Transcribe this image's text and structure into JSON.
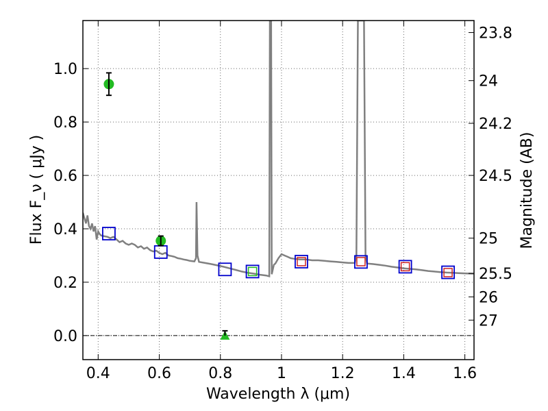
{
  "chart_data": {
    "type": "scatter",
    "xlabel": "Wavelength  λ (μm)",
    "ylabel_left": "Flux  F_ν  ( μJy )",
    "ylabel_right": "Magnitude (AB)",
    "xlim": [
      0.35,
      1.63
    ],
    "ylim": [
      -0.09,
      1.18
    ],
    "x_ticks": [
      {
        "v": 0.4,
        "label": "0.4"
      },
      {
        "v": 0.6,
        "label": "0.6"
      },
      {
        "v": 0.8,
        "label": "0.8"
      },
      {
        "v": 1.0,
        "label": "1"
      },
      {
        "v": 1.2,
        "label": "1.2"
      },
      {
        "v": 1.4,
        "label": "1.4"
      },
      {
        "v": 1.6,
        "label": "1.6"
      }
    ],
    "y_ticks": [
      {
        "v": 0.0,
        "label": "0.0"
      },
      {
        "v": 0.2,
        "label": "0.2"
      },
      {
        "v": 0.4,
        "label": "0.4"
      },
      {
        "v": 0.6,
        "label": "0.6"
      },
      {
        "v": 0.8,
        "label": "0.8"
      },
      {
        "v": 1.0,
        "label": "1.0"
      }
    ],
    "mag_ticks": [
      {
        "v": 1.135,
        "label": "23.8"
      },
      {
        "v": 0.955,
        "label": "24"
      },
      {
        "v": 0.795,
        "label": "24.2"
      },
      {
        "v": 0.6,
        "label": "24.5"
      },
      {
        "v": 0.365,
        "label": "25"
      },
      {
        "v": 0.233,
        "label": "25.5"
      },
      {
        "v": 0.145,
        "label": "26"
      },
      {
        "v": 0.058,
        "label": "27"
      }
    ],
    "colors": {
      "model": "#808080",
      "model_box": "#0000cc",
      "observed": "#22bb22",
      "nir_box": "#cc2222",
      "grid": "#666666"
    },
    "model_spectrum": [
      [
        0.35,
        0.46
      ],
      [
        0.355,
        0.44
      ],
      [
        0.36,
        0.42
      ],
      [
        0.365,
        0.45
      ],
      [
        0.37,
        0.41
      ],
      [
        0.375,
        0.4
      ],
      [
        0.38,
        0.42
      ],
      [
        0.385,
        0.39
      ],
      [
        0.39,
        0.41
      ],
      [
        0.395,
        0.36
      ],
      [
        0.4,
        0.39
      ],
      [
        0.405,
        0.38
      ],
      [
        0.41,
        0.375
      ],
      [
        0.42,
        0.372
      ],
      [
        0.43,
        0.37
      ],
      [
        0.44,
        0.365
      ],
      [
        0.45,
        0.37
      ],
      [
        0.46,
        0.36
      ],
      [
        0.47,
        0.35
      ],
      [
        0.48,
        0.355
      ],
      [
        0.49,
        0.345
      ],
      [
        0.5,
        0.34
      ],
      [
        0.51,
        0.345
      ],
      [
        0.52,
        0.34
      ],
      [
        0.53,
        0.33
      ],
      [
        0.54,
        0.335
      ],
      [
        0.55,
        0.325
      ],
      [
        0.56,
        0.33
      ],
      [
        0.57,
        0.32
      ],
      [
        0.58,
        0.315
      ],
      [
        0.59,
        0.318
      ],
      [
        0.6,
        0.31
      ],
      [
        0.61,
        0.305
      ],
      [
        0.62,
        0.31
      ],
      [
        0.63,
        0.3
      ],
      [
        0.64,
        0.298
      ],
      [
        0.65,
        0.295
      ],
      [
        0.66,
        0.29
      ],
      [
        0.67,
        0.288
      ],
      [
        0.68,
        0.285
      ],
      [
        0.69,
        0.283
      ],
      [
        0.7,
        0.28
      ],
      [
        0.715,
        0.278
      ],
      [
        0.72,
        0.29
      ],
      [
        0.722,
        0.5
      ],
      [
        0.725,
        0.3
      ],
      [
        0.73,
        0.276
      ],
      [
        0.75,
        0.272
      ],
      [
        0.77,
        0.268
      ],
      [
        0.79,
        0.263
      ],
      [
        0.81,
        0.258
      ],
      [
        0.83,
        0.252
      ],
      [
        0.85,
        0.246
      ],
      [
        0.87,
        0.24
      ],
      [
        0.89,
        0.235
      ],
      [
        0.91,
        0.232
      ],
      [
        0.93,
        0.228
      ],
      [
        0.95,
        0.225
      ],
      [
        0.96,
        0.222
      ],
      [
        0.962,
        1.18
      ],
      [
        0.966,
        1.18
      ],
      [
        0.968,
        0.23
      ],
      [
        0.975,
        0.265
      ],
      [
        0.98,
        0.27
      ],
      [
        0.99,
        0.29
      ],
      [
        1.0,
        0.305
      ],
      [
        1.01,
        0.3
      ],
      [
        1.02,
        0.295
      ],
      [
        1.03,
        0.29
      ],
      [
        1.04,
        0.288
      ],
      [
        1.06,
        0.285
      ],
      [
        1.08,
        0.285
      ],
      [
        1.1,
        0.282
      ],
      [
        1.12,
        0.282
      ],
      [
        1.14,
        0.28
      ],
      [
        1.16,
        0.278
      ],
      [
        1.18,
        0.276
      ],
      [
        1.2,
        0.274
      ],
      [
        1.22,
        0.272
      ],
      [
        1.24,
        0.272
      ],
      [
        1.245,
        0.3
      ],
      [
        1.25,
        1.18
      ],
      [
        1.27,
        1.18
      ],
      [
        1.275,
        0.3
      ],
      [
        1.28,
        0.27
      ],
      [
        1.3,
        0.268
      ],
      [
        1.32,
        0.265
      ],
      [
        1.34,
        0.262
      ],
      [
        1.36,
        0.258
      ],
      [
        1.38,
        0.255
      ],
      [
        1.4,
        0.252
      ],
      [
        1.42,
        0.25
      ],
      [
        1.44,
        0.248
      ],
      [
        1.46,
        0.245
      ],
      [
        1.48,
        0.242
      ],
      [
        1.5,
        0.24
      ],
      [
        1.52,
        0.238
      ],
      [
        1.54,
        0.236
      ],
      [
        1.56,
        0.235
      ],
      [
        1.58,
        0.234
      ],
      [
        1.6,
        0.233
      ],
      [
        1.63,
        0.232
      ]
    ],
    "model_boxes": [
      {
        "x": 0.435,
        "y": 0.382
      },
      {
        "x": 0.605,
        "y": 0.313
      },
      {
        "x": 0.815,
        "y": 0.248
      },
      {
        "x": 0.905,
        "y": 0.24
      },
      {
        "x": 1.065,
        "y": 0.277
      },
      {
        "x": 1.26,
        "y": 0.276
      },
      {
        "x": 1.405,
        "y": 0.258
      },
      {
        "x": 1.545,
        "y": 0.237
      }
    ],
    "observed_points": [
      {
        "x": 0.435,
        "y": 0.942,
        "err": 0.042
      },
      {
        "x": 0.605,
        "y": 0.355,
        "err": 0.018
      }
    ],
    "upper_limits": [
      {
        "x": 0.815,
        "y": 0.0,
        "err": 0.018
      }
    ],
    "green_boxes": [
      {
        "x": 0.905,
        "y": 0.24
      }
    ],
    "red_boxes": [
      {
        "x": 1.065,
        "y": 0.277
      },
      {
        "x": 1.26,
        "y": 0.277
      },
      {
        "x": 1.405,
        "y": 0.258
      },
      {
        "x": 1.545,
        "y": 0.236
      }
    ]
  }
}
